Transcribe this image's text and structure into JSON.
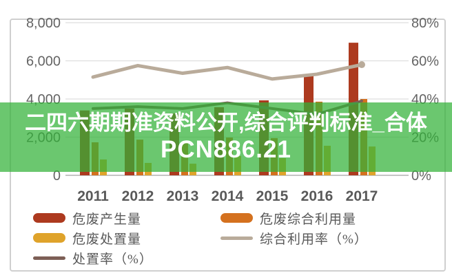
{
  "banner": {
    "line1": "二四六期期准资料公开,综合评判标准_合体",
    "line2": "PCN886.21",
    "overlay_color": "rgba(50,178,55,0.72)",
    "text_color": "#ffffff"
  },
  "chart_data": {
    "type": "bar",
    "subtype": "grouped-bars-with-lines",
    "categories": [
      "2011",
      "2012",
      "2013",
      "2014",
      "2015",
      "2016",
      "2017"
    ],
    "left_axis": {
      "ticks": [
        {
          "label": "8,000",
          "value": 8000
        },
        {
          "label": "6,000",
          "value": 6000
        },
        {
          "label": "4,000",
          "value": 4000
        },
        {
          "label": "2,000",
          "value": 2000
        },
        {
          "label": "0",
          "value": 0
        }
      ],
      "min": 0,
      "max": 8000
    },
    "right_axis": {
      "ticks": [
        {
          "label": "80%",
          "value": 80
        },
        {
          "label": "60%",
          "value": 60
        },
        {
          "label": "40%",
          "value": 40
        },
        {
          "label": "20%",
          "value": 20
        },
        {
          "label": "0%",
          "value": 0
        }
      ],
      "min": 0,
      "max": 80
    },
    "series": [
      {
        "name": "危废产生量",
        "type": "bar",
        "color": "#ad3a1f",
        "values": [
          3400,
          3500,
          3250,
          3570,
          3930,
          5220,
          6950
        ]
      },
      {
        "name": "危废综合利用量",
        "type": "bar",
        "color": "#d4711f",
        "values": [
          1730,
          1870,
          1690,
          1980,
          1950,
          3860,
          4000
        ]
      },
      {
        "name": "危废处置量",
        "type": "bar",
        "color": "#dfa32b",
        "values": [
          830,
          650,
          610,
          1010,
          900,
          1550,
          1510
        ]
      },
      {
        "name": "综合利用率（%）",
        "type": "line",
        "axis": "right",
        "color": "#b9ab9a",
        "values": [
          51.5,
          57.5,
          53.5,
          56.5,
          50.5,
          53,
          58
        ],
        "end_marker": true
      },
      {
        "name": "处置率（%）",
        "type": "line",
        "axis": "right",
        "color": "#7d5f56",
        "values": [
          35,
          36,
          35,
          38,
          35,
          32,
          39
        ],
        "end_marker": false
      }
    ],
    "grid": true,
    "gridline_color": "#dedede",
    "baseline_color": "#c4c4c4",
    "tick_label_color": "#646464",
    "category_label_color": "#595959",
    "legend_position": "bottom"
  },
  "legend": {
    "items": [
      {
        "label": "危废产生量",
        "swatch": "bar",
        "color": "#ad3a1f"
      },
      {
        "label": "危废综合利用量",
        "swatch": "bar",
        "color": "#d4711f"
      },
      {
        "label": "危废处置量",
        "swatch": "bar",
        "color": "#dfa32b"
      },
      {
        "label": "综合利用率（%）",
        "swatch": "line",
        "color": "#b9ab9a"
      },
      {
        "label": "处置率（%）",
        "swatch": "line",
        "color": "#7d5f56"
      }
    ]
  }
}
